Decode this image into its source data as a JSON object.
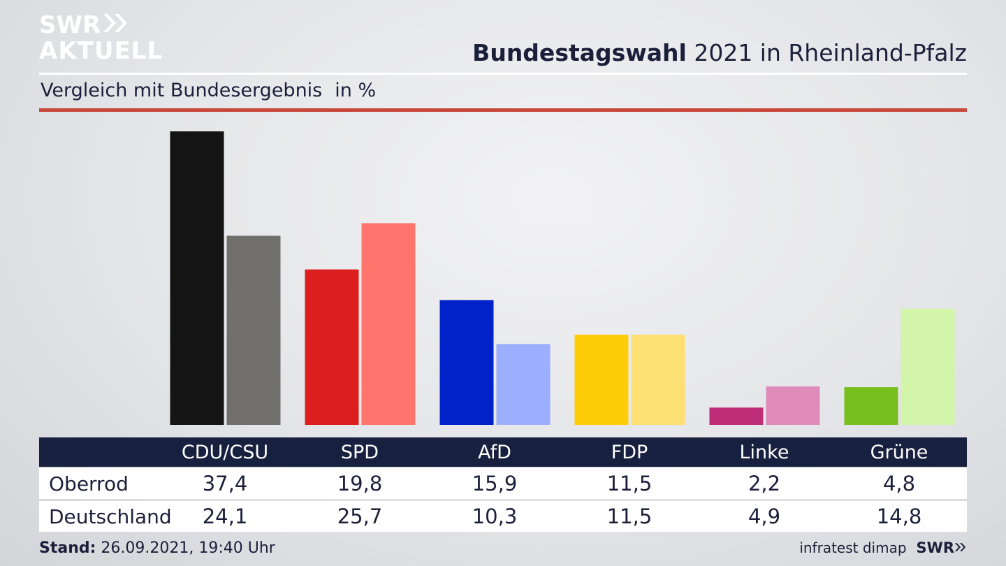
{
  "branding": {
    "logo_line1": "SWR",
    "logo_line2": "AKTUELL",
    "footer_logo": "SWR",
    "source": "infratest dimap"
  },
  "header": {
    "title_bold": "Bundestagswahl",
    "title_rest": "2021 in Rheinland-Pfalz",
    "subtitle": "Vergleich mit Bundesergebnis",
    "unit": "in %"
  },
  "footer": {
    "stand_label": "Stand:",
    "stand_value": "26.09.2021, 19:40 Uhr"
  },
  "colors": {
    "navy": "#17203f",
    "accent_red_rule": "#c8473a"
  },
  "chart_data": {
    "type": "bar",
    "categories": [
      "CDU/CSU",
      "SPD",
      "AfD",
      "FDP",
      "Linke",
      "Grüne"
    ],
    "series": [
      {
        "name": "Oberrod",
        "values": [
          37.4,
          19.8,
          15.9,
          11.5,
          2.2,
          4.8
        ],
        "colors": [
          "#141414",
          "#dc1e1e",
          "#0022c8",
          "#ffcc0a",
          "#be2d78",
          "#78be1e"
        ]
      },
      {
        "name": "Deutschland",
        "values": [
          24.1,
          25.7,
          10.3,
          11.5,
          4.9,
          14.8
        ],
        "colors": [
          "#706f6c",
          "#ff746c",
          "#9caefe",
          "#fde073",
          "#e08cba",
          "#d2f5aa"
        ]
      }
    ],
    "value_labels": [
      [
        "37,4",
        "19,8",
        "15,9",
        "11,5",
        "2,2",
        "4,8"
      ],
      [
        "24,1",
        "25,7",
        "10,3",
        "11,5",
        "4,9",
        "14,8"
      ]
    ],
    "ylim": [
      0,
      37.4
    ]
  }
}
